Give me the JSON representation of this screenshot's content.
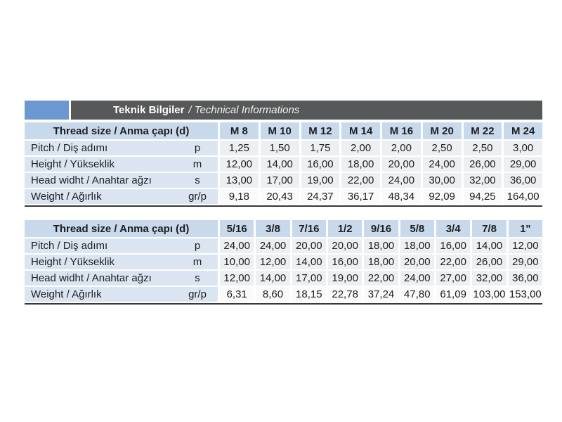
{
  "header": {
    "title_bold": "Teknik Bilgiler",
    "title_italic": "/ Technical Informations"
  },
  "colors": {
    "accent_blue": "#6c98d1",
    "band_gray": "#57585a",
    "table_header_blue": "#c8d9eb",
    "row_label_blue": "#dbe5f1",
    "data_cell_gray": "#edeff2",
    "underline_dark": "#383838"
  },
  "tables": [
    {
      "name": "metric-thread-table",
      "header_label": "Thread size / Anma çapı (d)",
      "columns": [
        "M 8",
        "M 10",
        "M 12",
        "M 14",
        "M 16",
        "M 20",
        "M 22",
        "M 24"
      ],
      "rows": [
        {
          "label": "Pitch / Diş adımı",
          "symbol": "p",
          "values": [
            "1,25",
            "1,50",
            "1,75",
            "2,00",
            "2,00",
            "2,50",
            "2,50",
            "3,00"
          ]
        },
        {
          "label": "Height / Yükseklik",
          "symbol": "m",
          "values": [
            "12,00",
            "14,00",
            "16,00",
            "18,00",
            "20,00",
            "24,00",
            "26,00",
            "29,00"
          ]
        },
        {
          "label": "Head widht / Anahtar ağzı",
          "symbol": "s",
          "values": [
            "13,00",
            "17,00",
            "19,00",
            "22,00",
            "24,00",
            "30,00",
            "32,00",
            "36,00"
          ]
        },
        {
          "label": "Weight / Ağırlık",
          "symbol": "gr/p",
          "values": [
            "9,18",
            "20,43",
            "24,37",
            "36,17",
            "48,34",
            "92,09",
            "94,25",
            "164,00"
          ]
        }
      ]
    },
    {
      "name": "imperial-thread-table",
      "header_label": "Thread size / Anma çapı (d)",
      "columns": [
        "5/16",
        "3/8",
        "7/16",
        "1/2",
        "9/16",
        "5/8",
        "3/4",
        "7/8",
        "1\""
      ],
      "rows": [
        {
          "label": "Pitch / Diş adımı",
          "symbol": "p",
          "values": [
            "24,00",
            "24,00",
            "20,00",
            "20,00",
            "18,00",
            "18,00",
            "16,00",
            "14,00",
            "12,00"
          ]
        },
        {
          "label": "Height / Yükseklik",
          "symbol": "m",
          "values": [
            "10,00",
            "12,00",
            "14,00",
            "16,00",
            "18,00",
            "20,00",
            "22,00",
            "26,00",
            "29,00"
          ]
        },
        {
          "label": "Head widht / Anahtar ağzı",
          "symbol": "s",
          "values": [
            "12,00",
            "14,00",
            "17,00",
            "19,00",
            "22,00",
            "24,00",
            "27,00",
            "32,00",
            "36,00"
          ]
        },
        {
          "label": "Weight / Ağırlık",
          "symbol": "gr/p",
          "values": [
            "6,31",
            "8,60",
            "18,15",
            "22,78",
            "37,24",
            "47,80",
            "61,09",
            "103,00",
            "153,00"
          ]
        }
      ]
    }
  ]
}
